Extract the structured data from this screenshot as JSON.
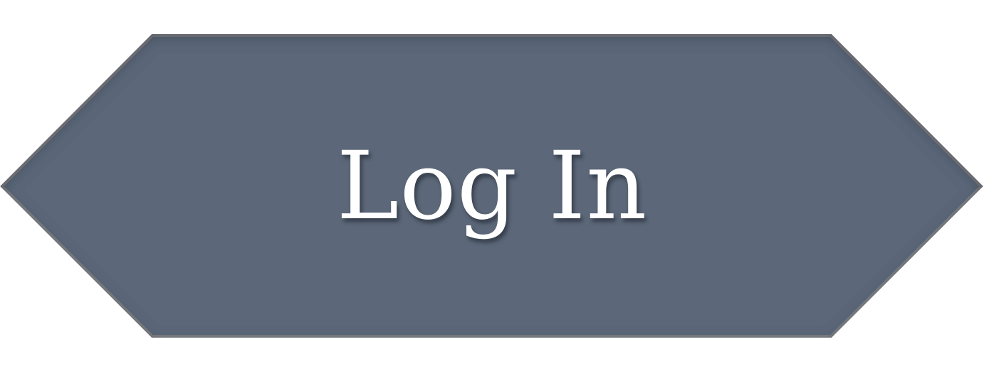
{
  "button": {
    "label": "Log In",
    "fill_color": "#5b6779",
    "border_color": "#7d7f83",
    "text_color": "#ffffff"
  }
}
